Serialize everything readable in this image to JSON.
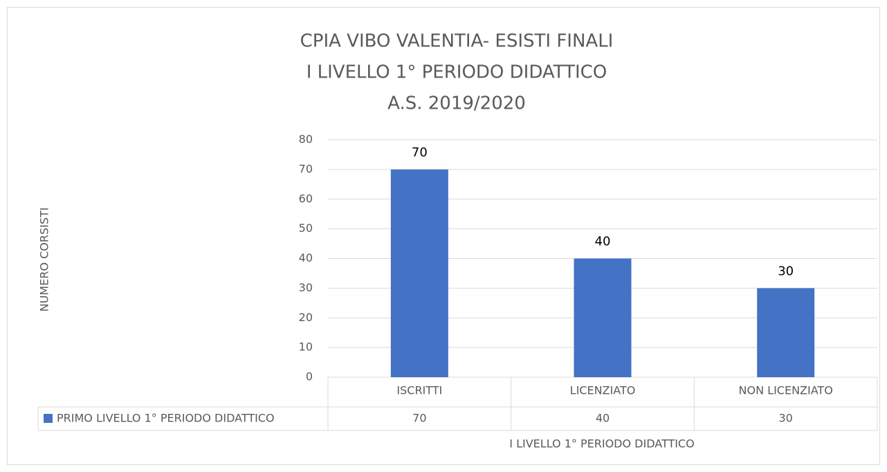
{
  "chart_data": {
    "type": "bar",
    "title": [
      "CPIA VIBO VALENTIA- ESISTI FINALI",
      "I LIVELLO 1° PERIODO DIDATTICO",
      "A.S. 2019/2020"
    ],
    "x_label": "I LIVELLO 1° PERIODO DIDATTICO",
    "y_label": "NUMERO CORSISTI",
    "categories": [
      "ISCRITTI",
      "LICENZIATO",
      "NON LICENZIATO"
    ],
    "series": [
      {
        "name": "PRIMO LIVELLO 1° PERIODO DIDATTICO",
        "color": "#4472c4",
        "values": [
          70,
          40,
          30
        ]
      }
    ],
    "ylim": [
      0,
      80
    ],
    "yticks": [
      0,
      10,
      20,
      30,
      40,
      50,
      60,
      70,
      80
    ],
    "grid": true,
    "data_labels": true,
    "data_table": true
  }
}
